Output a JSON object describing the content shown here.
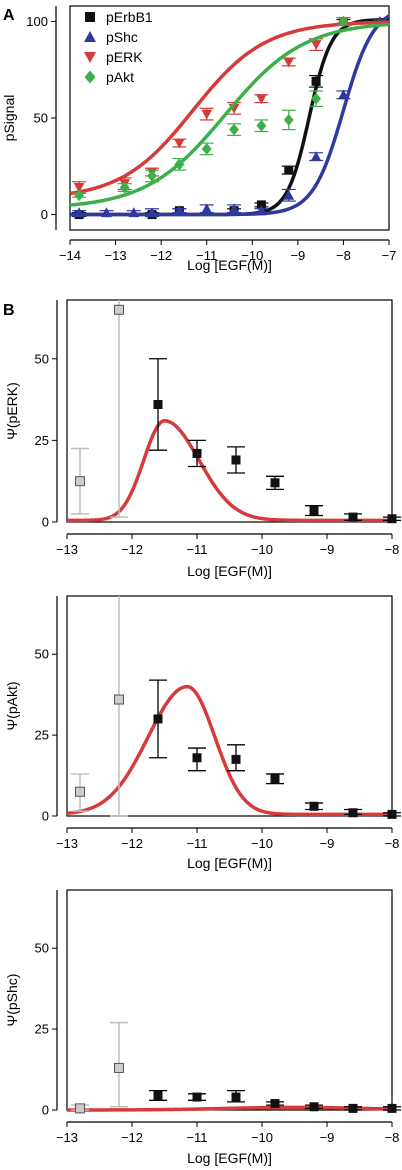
{
  "chart_data": [
    {
      "type": "scatter",
      "panel_label": "A",
      "xlabel": "Log [EGF(M)]",
      "ylabel": "pSignal",
      "xlim": [
        -14,
        -7
      ],
      "ylim": [
        -8,
        108
      ],
      "xticks": [
        -14,
        -13,
        -12,
        -11,
        -10,
        -9,
        -8,
        -7
      ],
      "yticks": [
        0,
        50,
        100
      ],
      "legend_position": "top-left",
      "grid": false,
      "series": [
        {
          "name": "pErbB1",
          "color": "#111111",
          "marker": "square",
          "points": [
            [
              -13.8,
              0,
              1
            ],
            [
              -12.2,
              0,
              1
            ],
            [
              -11.6,
              2,
              1
            ],
            [
              -10.4,
              2,
              1
            ],
            [
              -9.8,
              5,
              1
            ],
            [
              -9.2,
              23,
              2
            ],
            [
              -8.6,
              69,
              3
            ],
            [
              -8.0,
              100,
              1
            ]
          ],
          "curve": {
            "bottom": 0,
            "top": 101,
            "ec50": -8.75,
            "slope": 1.8
          }
        },
        {
          "name": "pShc",
          "color": "#2e3a9e",
          "marker": "triangle-up",
          "points": [
            [
              -13.8,
              1,
              1
            ],
            [
              -13.2,
              1,
              1
            ],
            [
              -12.6,
              1,
              1
            ],
            [
              -12.2,
              1,
              2
            ],
            [
              -11.6,
              2,
              1
            ],
            [
              -11.0,
              3,
              2
            ],
            [
              -10.4,
              3,
              2
            ],
            [
              -9.8,
              2,
              1
            ],
            [
              -9.2,
              10,
              3
            ],
            [
              -8.6,
              30,
              2
            ],
            [
              -8.0,
              62,
              2
            ],
            [
              -7.2,
              100,
              1
            ]
          ],
          "curve": {
            "bottom": 0,
            "top": 108,
            "ec50": -8.0,
            "slope": 1.3
          }
        },
        {
          "name": "pERK",
          "color": "#d63a3a",
          "marker": "triangle-down",
          "points": [
            [
              -13.8,
              14,
              3
            ],
            [
              -12.8,
              16,
              3
            ],
            [
              -12.2,
              22,
              2
            ],
            [
              -11.6,
              37,
              2
            ],
            [
              -11.0,
              52,
              3
            ],
            [
              -10.4,
              55,
              3
            ],
            [
              -9.8,
              60,
              2
            ],
            [
              -9.2,
              79,
              2
            ],
            [
              -8.6,
              88,
              3
            ],
            [
              -8.0,
              100,
              2
            ]
          ],
          "curve": {
            "bottom": 8,
            "top": 100,
            "ec50": -11.3,
            "slope": 0.55
          }
        },
        {
          "name": "pAkt",
          "color": "#3bb04a",
          "marker": "diamond",
          "points": [
            [
              -13.8,
              10,
              1
            ],
            [
              -12.8,
              14,
              2
            ],
            [
              -12.2,
              20,
              3
            ],
            [
              -11.6,
              26,
              3
            ],
            [
              -11.0,
              34,
              3
            ],
            [
              -10.4,
              44,
              3
            ],
            [
              -9.8,
              46,
              3
            ],
            [
              -9.2,
              49,
              5
            ],
            [
              -8.6,
              60,
              4
            ],
            [
              -8.0,
              100,
              2
            ]
          ],
          "curve": {
            "bottom": 3,
            "top": 100,
            "ec50": -10.6,
            "slope": 0.5
          }
        }
      ]
    },
    {
      "type": "scatter",
      "panel_label": "B",
      "xlabel": "Log [EGF(M)]",
      "ylabel": "Ψ(pERK)",
      "xlim": [
        -13,
        -8
      ],
      "ylim": [
        0,
        68
      ],
      "xticks": [
        -13,
        -12,
        -11,
        -10,
        -9,
        -8
      ],
      "yticks": [
        0,
        25,
        50
      ],
      "grey_points": [
        [
          -12.8,
          12.5,
          2.5,
          22.5
        ],
        [
          -12.2,
          65,
          1.5,
          80
        ]
      ],
      "black_points": [
        [
          -11.6,
          36,
          22,
          50
        ],
        [
          -11.0,
          21,
          17,
          25
        ],
        [
          -10.4,
          19,
          15,
          23
        ],
        [
          -9.8,
          12,
          10,
          14
        ],
        [
          -9.2,
          3.5,
          2,
          5
        ],
        [
          -8.6,
          1.5,
          0.5,
          2.5
        ],
        [
          -8.0,
          1,
          0.5,
          1.5
        ]
      ],
      "curve": {
        "baseline": 0.5,
        "peak": 31,
        "peak_x": -11.5,
        "width_left": 0.45,
        "width_right": 0.75
      }
    },
    {
      "type": "scatter",
      "panel_label": "",
      "xlabel": "Log [EGF(M)]",
      "ylabel": "Ψ(pAkt)",
      "xlim": [
        -13,
        -8
      ],
      "ylim": [
        0,
        68
      ],
      "xticks": [
        -13,
        -12,
        -11,
        -10,
        -9,
        -8
      ],
      "yticks": [
        0,
        25,
        50
      ],
      "grey_points": [
        [
          -12.8,
          7.5,
          1.5,
          13
        ],
        [
          -12.2,
          36,
          0,
          80
        ]
      ],
      "black_points": [
        [
          -11.6,
          30,
          18,
          42
        ],
        [
          -11.0,
          18,
          14,
          21
        ],
        [
          -10.4,
          17.5,
          14,
          22
        ],
        [
          -9.8,
          11.5,
          10,
          13
        ],
        [
          -9.2,
          3,
          2,
          4
        ],
        [
          -8.6,
          1,
          0.5,
          2
        ],
        [
          -8.0,
          0.5,
          0,
          1
        ]
      ],
      "curve": {
        "baseline": 0.5,
        "peak": 40,
        "peak_x": -11.15,
        "width_left": 0.85,
        "width_right": 0.6
      }
    },
    {
      "type": "scatter",
      "panel_label": "",
      "xlabel": "Log [EGF(M)]",
      "ylabel": "Ψ(pShc)",
      "xlim": [
        -13,
        -8
      ],
      "ylim": [
        0,
        68
      ],
      "xticks": [
        -13,
        -12,
        -11,
        -10,
        -9,
        -8
      ],
      "yticks": [
        0,
        25,
        50
      ],
      "grey_points": [
        [
          -12.8,
          0.5,
          0,
          1.5
        ],
        [
          -12.2,
          13,
          1,
          27
        ]
      ],
      "black_points": [
        [
          -11.6,
          4.5,
          3,
          6
        ],
        [
          -11.0,
          4,
          3,
          5
        ],
        [
          -10.4,
          4,
          2.5,
          6
        ],
        [
          -9.8,
          2,
          1.5,
          2.5
        ],
        [
          -9.2,
          1,
          0.5,
          1.5
        ],
        [
          -8.6,
          0.5,
          0,
          1
        ],
        [
          -8.0,
          0.5,
          0,
          1
        ]
      ],
      "curve": {
        "baseline": 0,
        "peak": 0.8,
        "peak_x": -9.5,
        "width_left": 1.5,
        "width_right": 1.5
      }
    }
  ]
}
